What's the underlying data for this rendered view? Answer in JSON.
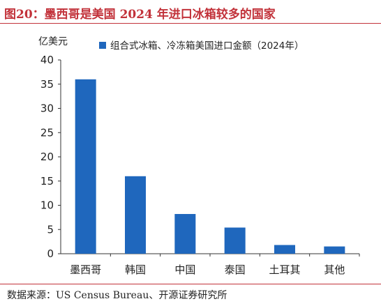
{
  "figure": {
    "title": "图20：墨西哥是美国 2024 年进口冰箱较多的国家",
    "source": "数据来源：US Census Bureau、开源证券研究所"
  },
  "colors": {
    "bar": "#1f67bd",
    "title": "#c2323a",
    "axis": "#333333"
  },
  "chart_data": {
    "type": "bar",
    "title": "",
    "ylabel": "亿美元",
    "xlabel": "",
    "categories": [
      "墨西哥",
      "韩国",
      "中国",
      "泰国",
      "土耳其",
      "其他"
    ],
    "series": [
      {
        "name": "组合式冰箱、冷冻箱美国进口金额（2024年）",
        "values": [
          36.0,
          16.0,
          8.2,
          5.4,
          1.8,
          1.5
        ]
      }
    ],
    "ylim": [
      0,
      40
    ],
    "yticks": [
      0,
      5,
      10,
      15,
      20,
      25,
      30,
      35,
      40
    ],
    "grid": false,
    "legend": "top-center"
  }
}
